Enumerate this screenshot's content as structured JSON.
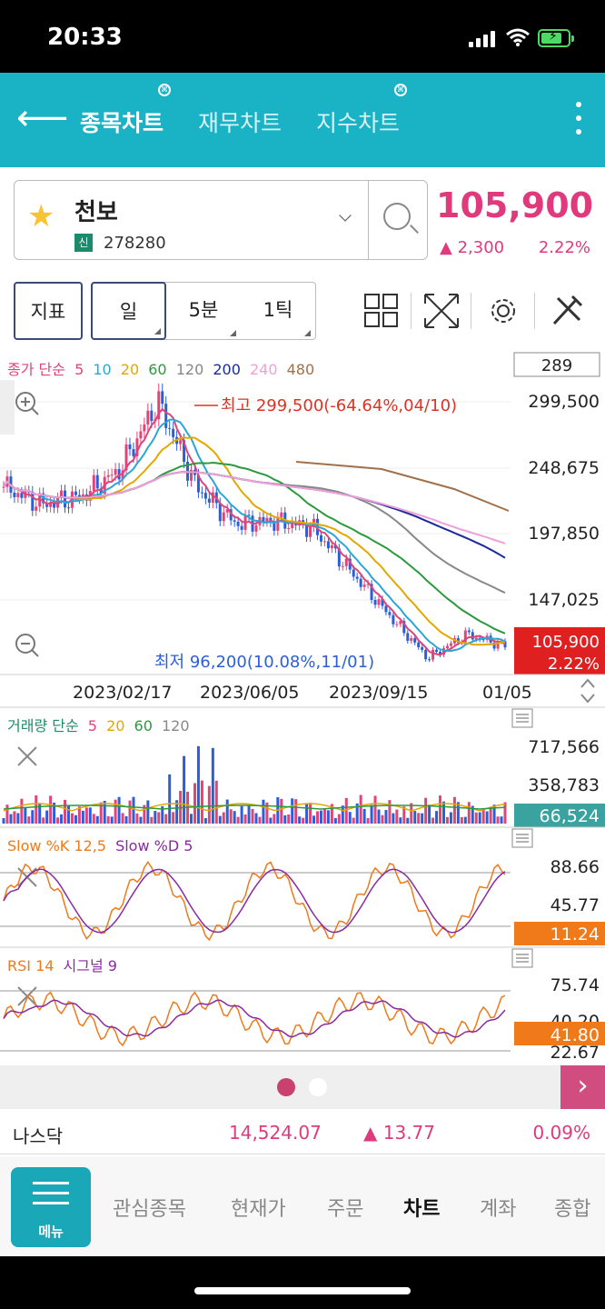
{
  "status_bar": {
    "time": "20:33"
  },
  "top_tabs": [
    {
      "label": "종목차트",
      "active": true,
      "badge": true
    },
    {
      "label": "재무차트",
      "active": false,
      "badge": false
    },
    {
      "label": "지수차트",
      "active": false,
      "badge": true
    }
  ],
  "stock": {
    "name": "천보",
    "code_tag": "신",
    "code": "278280",
    "price": "105,900",
    "change": "▲ 2,300",
    "change_pct": "2.22%"
  },
  "period_buttons": {
    "indicator": "지표",
    "day": "일",
    "five_min": "5분",
    "tick": "1틱"
  },
  "colors": {
    "accent": "#1ab3c6",
    "up": "#e03a7d",
    "down": "#2b5fd9"
  },
  "chart_data": [
    {
      "type": "line",
      "title": "종가 단순 5 10 20 60 120 200 240 480",
      "legend": [
        "종가 단순",
        "5",
        "10",
        "20",
        "60",
        "120",
        "200",
        "240",
        "480"
      ],
      "input_box": "289",
      "y_ticks": [
        "299,500",
        "248,675",
        "197,850",
        "147,025"
      ],
      "current_price_label": "105,900",
      "current_pct_label": "2.22%",
      "x_ticks": [
        "2023/02/17",
        "2023/06/05",
        "2023/09/15",
        "01/05"
      ],
      "high_annotation": "최고 299,500(-64.64%,04/10)",
      "low_annotation": "최저 96,200(10.08%,11/01)",
      "ylim": [
        96200,
        299500
      ],
      "close_series": [
        [
          "2022/12",
          232000
        ],
        [
          "2023/01",
          218000
        ],
        [
          "2023/02",
          224000
        ],
        [
          "2023/03",
          245000
        ],
        [
          "2023/04",
          299500
        ],
        [
          "2023/05",
          232000
        ],
        [
          "2023/06",
          203000
        ],
        [
          "2023/07",
          205000
        ],
        [
          "2023/08",
          200000
        ],
        [
          "2023/09",
          165000
        ],
        [
          "2023/10",
          130000
        ],
        [
          "2023/11",
          96200
        ],
        [
          "2023/12",
          115000
        ],
        [
          "2024/01",
          105900
        ]
      ]
    },
    {
      "type": "bar",
      "title": "거래량 단순 5 20 60 120",
      "legend": [
        "거래량 단순",
        "5",
        "20",
        "60",
        "120"
      ],
      "y_ticks": [
        "717,566",
        "358,783"
      ],
      "current_label": "66,524"
    },
    {
      "type": "line",
      "title": "Slow %K 12,5 Slow %D 5",
      "legend": [
        "Slow %K 12,5",
        "Slow %D 5"
      ],
      "y_ticks": [
        "88.66",
        "45.77"
      ],
      "current_label": "11.24"
    },
    {
      "type": "line",
      "title": "RSI 14 시그널 9",
      "legend": [
        "RSI 14",
        "시그널 9"
      ],
      "y_ticks": [
        "75.74",
        "40.20",
        "22.67"
      ],
      "current_label": "41.80"
    }
  ],
  "index_bar": {
    "name": "나스닥",
    "value": "14,524.07",
    "change": "▲ 13.77",
    "pct": "0.09%"
  },
  "bottom_nav": {
    "menu": "메뉴",
    "items": [
      "관심종목",
      "현재가",
      "주문",
      "차트",
      "계좌",
      "종합"
    ],
    "active": "차트"
  }
}
